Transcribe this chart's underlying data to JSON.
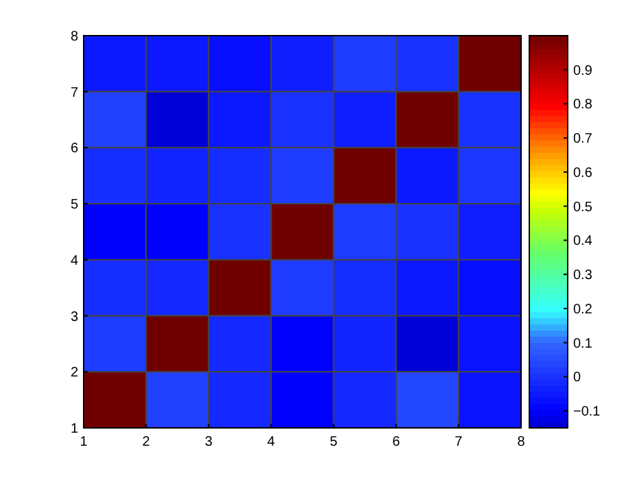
{
  "chart_data": {
    "type": "heatmap",
    "x": [
      1.5,
      2.5,
      3.5,
      4.5,
      5.5,
      6.5,
      7.5
    ],
    "y": [
      7.5,
      6.5,
      5.5,
      4.5,
      3.5,
      2.5,
      1.5
    ],
    "xlim": [
      1,
      8
    ],
    "xticks": [
      1,
      2,
      3,
      4,
      5,
      6,
      7,
      8
    ],
    "ylim": [
      1,
      8
    ],
    "yticks": [
      1,
      2,
      3,
      4,
      5,
      6,
      7,
      8
    ],
    "cells": [
      [
        -0.05,
        -0.05,
        -0.07,
        -0.04,
        0.02,
        0.0,
        1
      ],
      [
        0.03,
        -0.14,
        -0.05,
        0.0,
        -0.04,
        1,
        0.0
      ],
      [
        -0.01,
        -0.03,
        -0.01,
        0.02,
        1,
        -0.05,
        0.01
      ],
      [
        -0.1,
        -0.1,
        0.0,
        1,
        0.02,
        0.0,
        -0.04
      ],
      [
        -0.01,
        -0.02,
        1,
        0.02,
        -0.01,
        -0.05,
        -0.07
      ],
      [
        0.02,
        1,
        -0.02,
        -0.1,
        -0.03,
        -0.14,
        -0.06
      ],
      [
        1,
        0.03,
        -0.02,
        -0.1,
        -0.02,
        0.04,
        -0.06
      ]
    ],
    "clim": [
      -0.15,
      1
    ],
    "cticks": [
      -0.1,
      0,
      0.1,
      0.2,
      0.3,
      0.4,
      0.5,
      0.6,
      0.7,
      0.8,
      0.9
    ]
  }
}
